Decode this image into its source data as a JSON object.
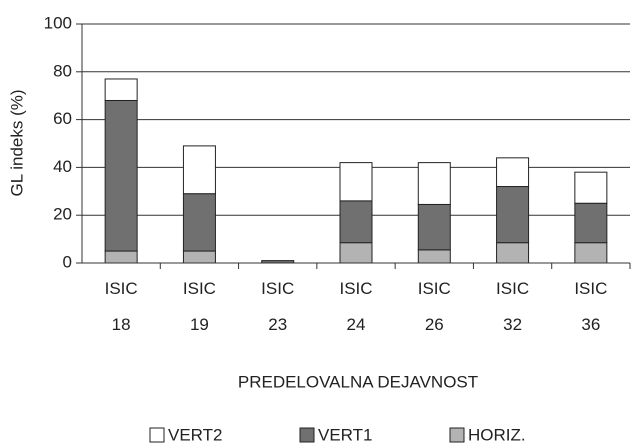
{
  "chart_data": {
    "type": "stacked_bar",
    "categories": [
      "ISIC 18",
      "ISIC 19",
      "ISIC 23",
      "ISIC 24",
      "ISIC 26",
      "ISIC 32",
      "ISIC 36"
    ],
    "series": [
      {
        "name": "VERT2",
        "color": "#ffffff",
        "values": [
          9,
          20,
          0,
          16,
          17.5,
          12,
          13
        ]
      },
      {
        "name": "VERT1",
        "color": "#707070",
        "values": [
          63,
          24,
          1,
          17.5,
          19,
          23.5,
          16.5
        ]
      },
      {
        "name": "HORIZ.",
        "color": "#b3b3b3",
        "values": [
          5,
          5,
          0,
          8.5,
          5.5,
          8.5,
          8.5
        ]
      }
    ],
    "y_label": "GL indeks (%)",
    "x_label": "PREDELOVALNA DEJAVNOST",
    "ylim": [
      0,
      100
    ],
    "yticks": [
      0,
      20,
      40,
      60,
      80,
      100
    ],
    "grid": true,
    "legend": "bottom"
  }
}
